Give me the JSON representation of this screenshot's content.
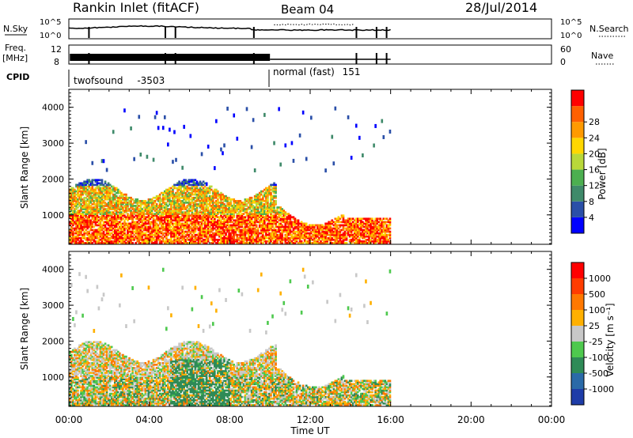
{
  "header": {
    "station": "Rankin Inlet (fitACF)",
    "beam": "Beam 04",
    "date": "28/Jul/2014"
  },
  "strip_panels": {
    "nsky": {
      "label": "N.Sky",
      "left_ticks": [
        "10^5",
        "10^0"
      ],
      "right_ticks": [
        "10^5",
        "10^0"
      ],
      "right_label": "N.Search"
    },
    "freq": {
      "label_line1": "Freq.",
      "label_line2": "[MHz]",
      "left_ticks": [
        "12",
        "8"
      ],
      "right_ticks": [
        "60",
        "0"
      ],
      "right_label": "Nave"
    },
    "cpid": {
      "label": "CPID",
      "segments": [
        {
          "name": "twofsound",
          "id": "-3503",
          "start_h": 0.0
        },
        {
          "name": "normal (fast)",
          "id": "151",
          "start_h": 10.0
        }
      ]
    }
  },
  "chart_data": [
    {
      "type": "heatmap",
      "title": "",
      "xlabel": "",
      "ylabel": "Slant Range [km]",
      "xlim": [
        0,
        24
      ],
      "ylim": [
        180,
        4500
      ],
      "y_ticks": [
        1000,
        2000,
        3000,
        4000
      ],
      "colorbar": {
        "label": "Power [dB]",
        "range": [
          0,
          32
        ],
        "ticks": [
          4,
          8,
          12,
          16,
          20,
          24,
          28
        ],
        "colors": [
          "#0000ff",
          "#2a4fa8",
          "#3f8a6a",
          "#4caf50",
          "#b9d83a",
          "#ffd700",
          "#ff9a00",
          "#ff6000",
          "#ff0000"
        ]
      },
      "data_extent_hours": [
        0,
        16
      ]
    },
    {
      "type": "heatmap",
      "title": "",
      "xlabel": "Time UT",
      "ylabel": "Slant Range [km]",
      "xlim": [
        0,
        24
      ],
      "ylim": [
        180,
        4500
      ],
      "y_ticks": [
        1000,
        2000,
        3000,
        4000
      ],
      "x_ticks": [
        "00:00",
        "04:00",
        "08:00",
        "12:00",
        "16:00",
        "20:00",
        "00:00"
      ],
      "colorbar": {
        "label": "Velocity [m s⁻¹]",
        "ticks": [
          "1000",
          "500",
          "100",
          "25",
          "-25",
          "-100",
          "-500",
          "-1000"
        ],
        "colors": [
          "#1e3ca8",
          "#2a6aa8",
          "#2e8b57",
          "#4ec94e",
          "#c8c8c8",
          "#ffb000",
          "#ff7800",
          "#ff3c00",
          "#ff0000"
        ]
      },
      "data_extent_hours": [
        0,
        16
      ]
    }
  ]
}
